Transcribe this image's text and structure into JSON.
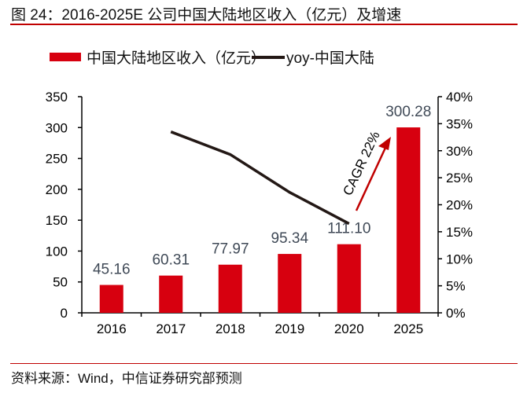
{
  "title": "图 24：2016-2025E 公司中国大陆地区收入（亿元）及增速",
  "source": "资料来源：Wind，中信证券研究部预测",
  "chart_data": {
    "type": "bar+line",
    "categories": [
      "2016",
      "2017",
      "2018",
      "2019",
      "2020",
      "2025"
    ],
    "series": [
      {
        "name": "中国大陆地区收入（亿元）",
        "type": "bar",
        "axis": "left",
        "color": "#d7000f",
        "values": [
          45.16,
          60.31,
          77.97,
          95.34,
          111.1,
          300.28
        ],
        "labels": [
          "45.16",
          "60.31",
          "77.97",
          "95.34",
          "111.10",
          "300.28"
        ]
      },
      {
        "name": "yoy-中国大陆",
        "type": "line",
        "axis": "right",
        "color": "#231815",
        "values": [
          null,
          33.5,
          29.3,
          22.3,
          16.5,
          null
        ]
      }
    ],
    "ylim_left": [
      0,
      350
    ],
    "yticks_left": [
      "0",
      "50",
      "100",
      "150",
      "200",
      "250",
      "300",
      "350"
    ],
    "ylim_right": [
      0,
      40
    ],
    "yticks_right": [
      "0%",
      "5%",
      "10%",
      "15%",
      "20%",
      "25%",
      "30%",
      "35%",
      "40%"
    ],
    "annotation": "CAGR 22%",
    "legend": "top",
    "grid": false
  }
}
